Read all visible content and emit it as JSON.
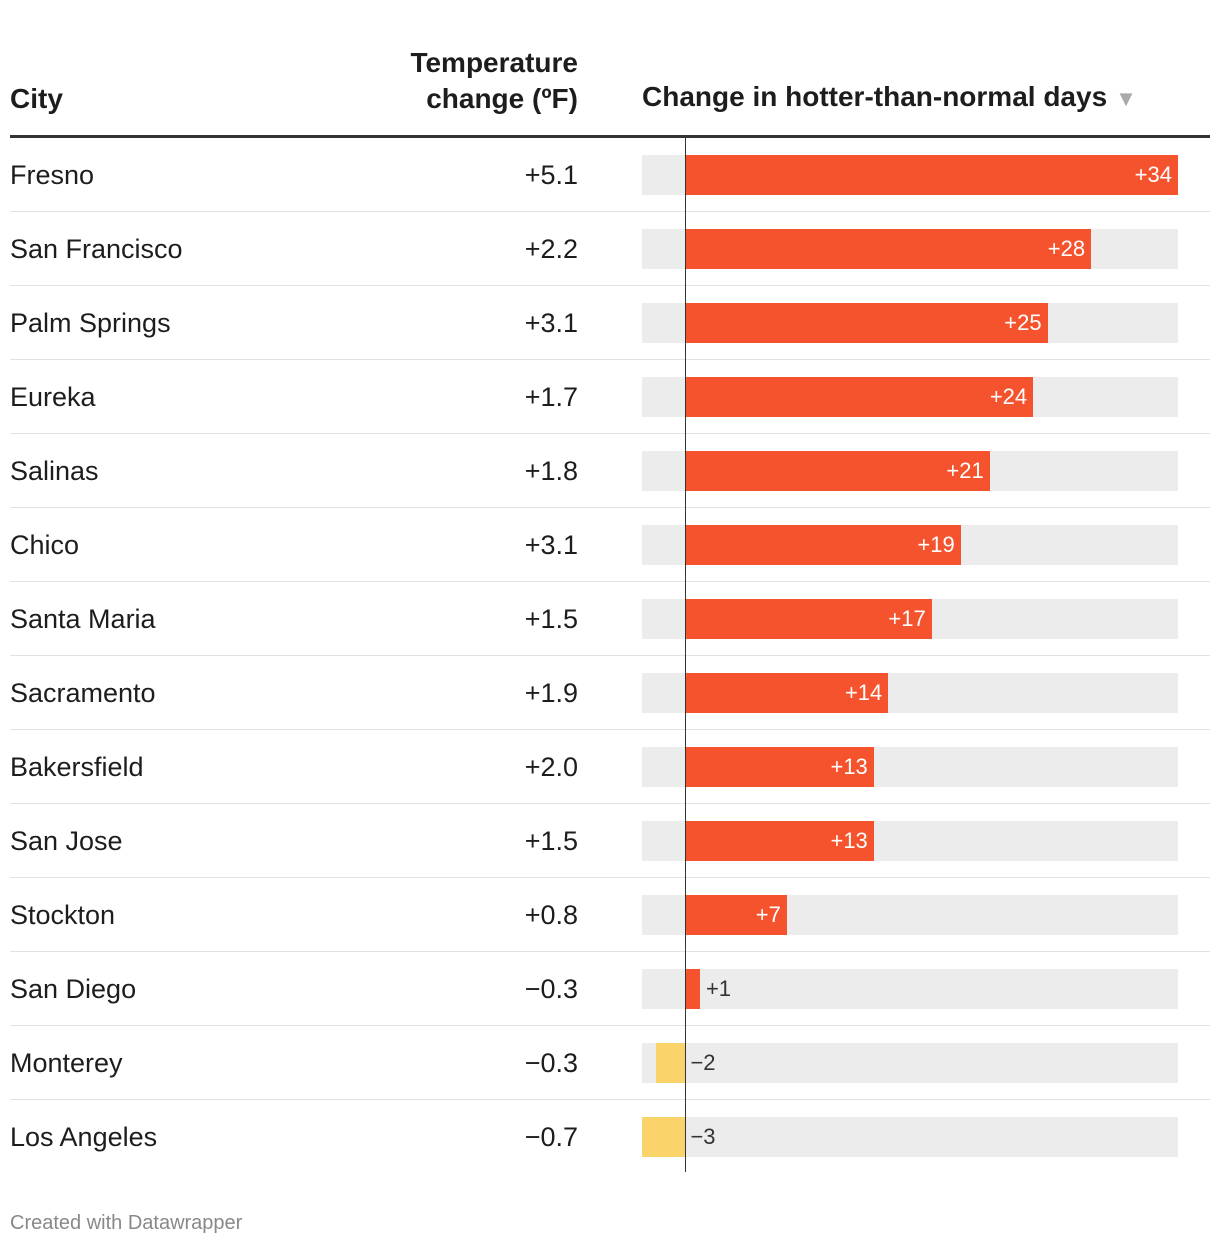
{
  "headers": {
    "city": "City",
    "temp_line1": "Temperature",
    "temp_line2": "change (ºF)",
    "days": "Change in hotter-than-normal days",
    "sort_arrow": "▼"
  },
  "footer": "Created with Datawrapper",
  "colors": {
    "positive": "#f5532d",
    "negative": "#fad36b",
    "track": "#ececec"
  },
  "chart_data": {
    "type": "table",
    "title": "Change in hotter-than-normal days",
    "columns": [
      "City",
      "Temperature change (ºF)",
      "Change in hotter-than-normal days"
    ],
    "bar_domain": [
      -3,
      34
    ],
    "rows": [
      {
        "city": "Fresno",
        "temp": "+5.1",
        "days": 34,
        "days_label": "+34"
      },
      {
        "city": "San Francisco",
        "temp": "+2.2",
        "days": 28,
        "days_label": "+28"
      },
      {
        "city": "Palm Springs",
        "temp": "+3.1",
        "days": 25,
        "days_label": "+25"
      },
      {
        "city": "Eureka",
        "temp": "+1.7",
        "days": 24,
        "days_label": "+24"
      },
      {
        "city": "Salinas",
        "temp": "+1.8",
        "days": 21,
        "days_label": "+21"
      },
      {
        "city": "Chico",
        "temp": "+3.1",
        "days": 19,
        "days_label": "+19"
      },
      {
        "city": "Santa Maria",
        "temp": "+1.5",
        "days": 17,
        "days_label": "+17"
      },
      {
        "city": "Sacramento",
        "temp": "+1.9",
        "days": 14,
        "days_label": "+14"
      },
      {
        "city": "Bakersfield",
        "temp": "+2.0",
        "days": 13,
        "days_label": "+13"
      },
      {
        "city": "San Jose",
        "temp": "+1.5",
        "days": 13,
        "days_label": "+13"
      },
      {
        "city": "Stockton",
        "temp": "+0.8",
        "days": 7,
        "days_label": "+7"
      },
      {
        "city": "San Diego",
        "temp": "−0.3",
        "days": 1,
        "days_label": "+1"
      },
      {
        "city": "Monterey",
        "temp": "−0.3",
        "days": -2,
        "days_label": "−2"
      },
      {
        "city": "Los Angeles",
        "temp": "−0.7",
        "days": -3,
        "days_label": "−3"
      }
    ]
  }
}
